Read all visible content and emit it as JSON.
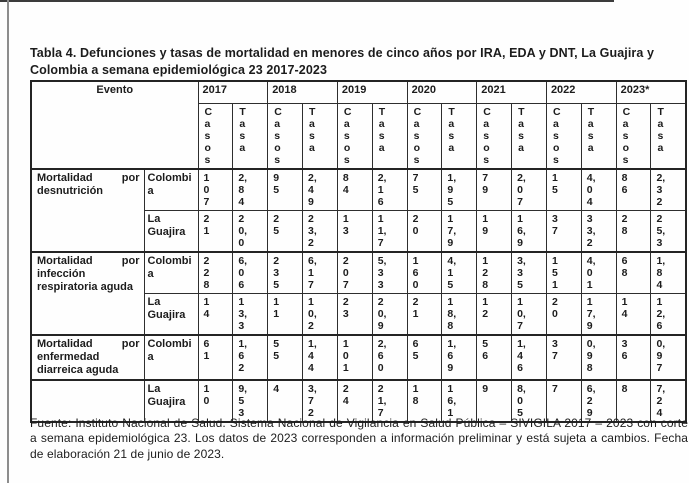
{
  "colors": {
    "ink": "#1c1c1c",
    "paper": "#fefefe"
  },
  "title": "Tabla 4. Defunciones y tasas de mortalidad en menores de cinco años por IRA, EDA y DNT, La Guajira y Colombia a semana epidemiológica 23 2017-2023",
  "table": {
    "event_header": "Evento",
    "years": [
      "2017",
      "2018",
      "2019",
      "2020",
      "2021",
      "2022",
      "2023*"
    ],
    "casos_label": "Casos",
    "tasa_label": "Tasa",
    "groups": [
      {
        "event": "Mortalidad por desnutrición",
        "rows": [
          {
            "location": "Colombia",
            "values": [
              "107",
              "2,84",
              "95",
              "2,49",
              "84",
              "2,16",
              "75",
              "1,95",
              "79",
              "2,07",
              "15",
              "4,04",
              "86",
              "2,32"
            ]
          },
          {
            "location": "La Guajira",
            "values": [
              "21",
              "20,0",
              "25",
              "23,2",
              "13",
              "11,7",
              "20",
              "17,9",
              "19",
              "16,9",
              "37",
              "33,2",
              "28",
              "25,3"
            ]
          }
        ]
      },
      {
        "event": "Mortalidad por infección respiratoria aguda",
        "rows": [
          {
            "location": "Colombia",
            "values": [
              "228",
              "6,06",
              "235",
              "6,17",
              "207",
              "5,33",
              "160",
              "4,15",
              "128",
              "3,35",
              "151",
              "4,01",
              "68",
              "1,84"
            ]
          },
          {
            "location": "La Guajira",
            "values": [
              "14",
              "13,3",
              "11",
              "10,2",
              "23",
              "20,9",
              "21",
              "18,8",
              "12",
              "10,7",
              "20",
              "17,9",
              "14",
              "12,6"
            ]
          }
        ]
      },
      {
        "event": "Mortalidad por enfermedad diarreica aguda",
        "rows": [
          {
            "location": "Colombia",
            "values": [
              "61",
              "1,62",
              "55",
              "1,44",
              "101",
              "2,60",
              "65",
              "1,69",
              "56",
              "1,46",
              "37",
              "0,98",
              "36",
              "0,97"
            ]
          },
          {
            "location": "La Guajira",
            "values": [
              "10",
              "9,53",
              "4",
              "3,72",
              "24",
              "21,7",
              "18",
              "16,1",
              "9",
              "8,05",
              "7",
              "6,29",
              "8",
              "7,24"
            ]
          }
        ]
      }
    ]
  },
  "footer": "Fuente: Instituto Nacional de Salud. Sistema Nacional de Vigilancia en Salud Pública – SIVIGILA 2017 – 2023 con corte a semana epidemiológica 23.  Los datos de 2023 corresponden a información preliminar y está sujeta a cambios.  Fecha de elaboración 21 de junio de 2023."
}
